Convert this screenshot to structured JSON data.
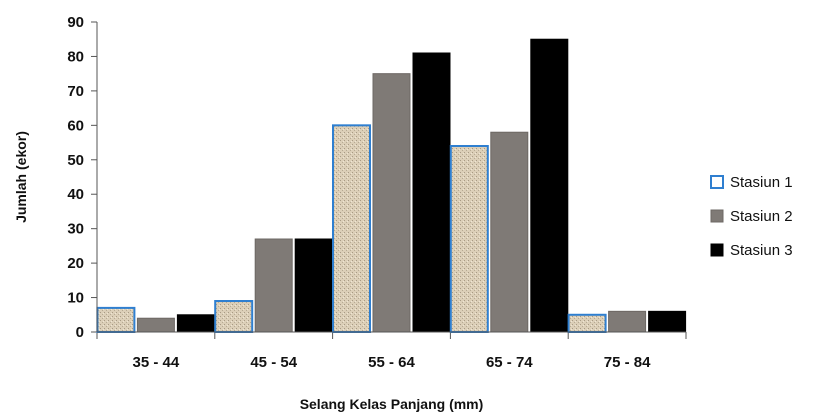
{
  "chart_data": {
    "type": "bar",
    "title": "",
    "xlabel": "Selang Kelas Panjang (mm)",
    "ylabel": "Jumlah (ekor)",
    "ylim": [
      0,
      90
    ],
    "yticks": [
      0,
      10,
      20,
      30,
      40,
      50,
      60,
      70,
      80,
      90
    ],
    "categories": [
      "35 - 44",
      "45 - 54",
      "55 - 64",
      "65 - 74",
      "75 - 84"
    ],
    "series": [
      {
        "name": "Stasiun 1",
        "values": [
          7,
          9,
          60,
          54,
          5
        ],
        "color": "#d9cdb6",
        "stroke": "#2f7fd0"
      },
      {
        "name": "Stasiun 2",
        "values": [
          4,
          27,
          75,
          58,
          6
        ],
        "color": "#7f7a76",
        "stroke": "#6d6864"
      },
      {
        "name": "Stasiun 3",
        "values": [
          5,
          27,
          81,
          85,
          6
        ],
        "color": "#000000",
        "stroke": "#000000"
      }
    ],
    "grid": false,
    "legend_position": "right"
  }
}
